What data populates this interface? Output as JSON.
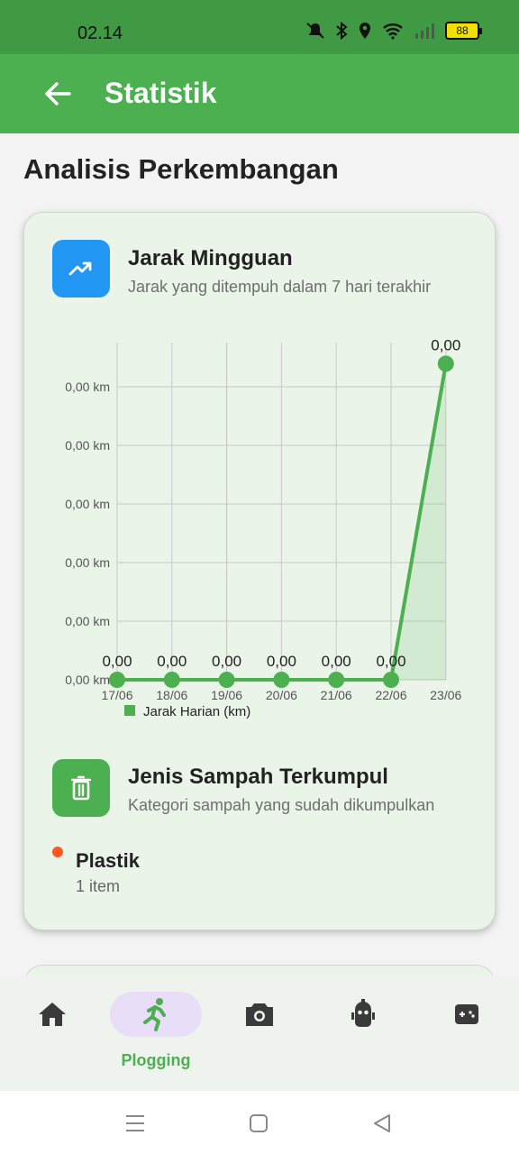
{
  "status": {
    "time": "02.14",
    "battery": "88"
  },
  "app_bar": {
    "title": "Statistik"
  },
  "page": {
    "section_title": "Analisis Perkembangan"
  },
  "weekly": {
    "title": "Jarak Mingguan",
    "subtitle": "Jarak yang ditempuh dalam 7 hari terakhir"
  },
  "chart_data": {
    "type": "line",
    "categories": [
      "17/06",
      "18/06",
      "19/06",
      "20/06",
      "21/06",
      "22/06",
      "23/06"
    ],
    "series": [
      {
        "name": "Jarak Harian (km)",
        "values": [
          0,
          0,
          0,
          0,
          0,
          0,
          0.003
        ],
        "value_labels": [
          "0,00",
          "0,00",
          "0,00",
          "0,00",
          "0,00",
          "0,00",
          "0,00"
        ]
      }
    ],
    "y_tick_labels": [
      "0,00 km",
      "0,00 km",
      "0,00 km",
      "0,00 km",
      "0,00 km",
      "0,00 km"
    ],
    "ylim": [
      0,
      0.0032
    ],
    "grid": true,
    "legend": "bottom-left",
    "color": "#4caf50"
  },
  "waste": {
    "title": "Jenis Sampah Terkumpul",
    "subtitle": "Kategori sampah yang sudah dikumpulkan",
    "items": [
      {
        "name": "Plastik",
        "count": "1 item",
        "color": "#ff5722"
      }
    ]
  },
  "nav": {
    "items": [
      {
        "icon": "home-icon"
      },
      {
        "icon": "run-icon",
        "label": "Plogging",
        "active": true
      },
      {
        "icon": "camera-icon"
      },
      {
        "icon": "robot-icon"
      },
      {
        "icon": "gamepad-icon"
      }
    ]
  }
}
